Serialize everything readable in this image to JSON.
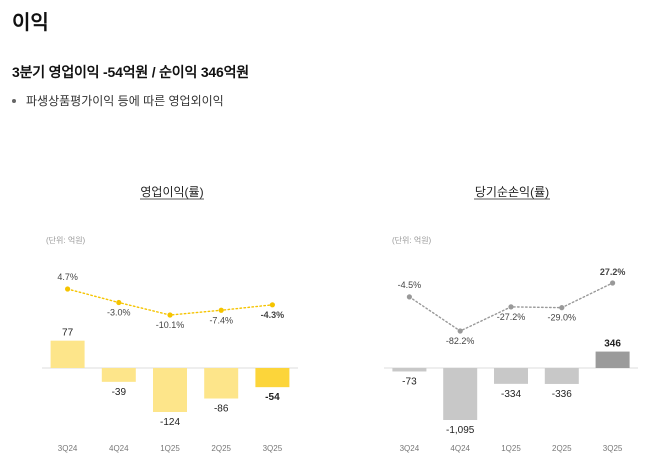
{
  "page": {
    "title": "이익",
    "headline": "3분기 영업이익  -54억원 / 순이익  346억원",
    "bullet": "파생상품평가이익 등에 따른 영업외이익"
  },
  "chart_data": [
    {
      "type": "bar",
      "title": "영업이익(률)",
      "unit_note": "(단위: 억원)",
      "categories": [
        "3Q24",
        "4Q24",
        "1Q25",
        "2Q25",
        "3Q25"
      ],
      "values": [
        77,
        -39,
        -124,
        -86,
        -54
      ],
      "value_labels": [
        "77",
        "-39",
        "-124",
        "-86",
        "-54"
      ],
      "ratio_series": {
        "values": [
          4.7,
          -3.0,
          -10.1,
          -7.4,
          -4.3
        ],
        "labels": [
          "4.7%",
          "-3.0%",
          "-10.1%",
          "-7.4%",
          "-4.3%"
        ]
      },
      "colors": {
        "bar": "#fde58a",
        "highlight": "#fcd53a",
        "ratio_line": "#f5c400"
      }
    },
    {
      "type": "bar",
      "title": "당기순손익(률)",
      "unit_note": "(단위: 억원)",
      "categories": [
        "3Q24",
        "4Q24",
        "1Q25",
        "2Q25",
        "3Q25"
      ],
      "values": [
        -73,
        -1095,
        -334,
        -336,
        346
      ],
      "value_labels": [
        "-73",
        "-1,095",
        "-334",
        "-336",
        "346"
      ],
      "ratio_series": {
        "values": [
          -4.5,
          -82.2,
          -27.2,
          -29.0,
          27.2
        ],
        "labels": [
          "-4.5%",
          "-82.2%",
          "-27.2%",
          "-29.0%",
          "27.2%"
        ]
      },
      "colors": {
        "bar": "#c8c8c8",
        "highlight": "#9b9b9b",
        "ratio_line": "#999999"
      }
    }
  ]
}
